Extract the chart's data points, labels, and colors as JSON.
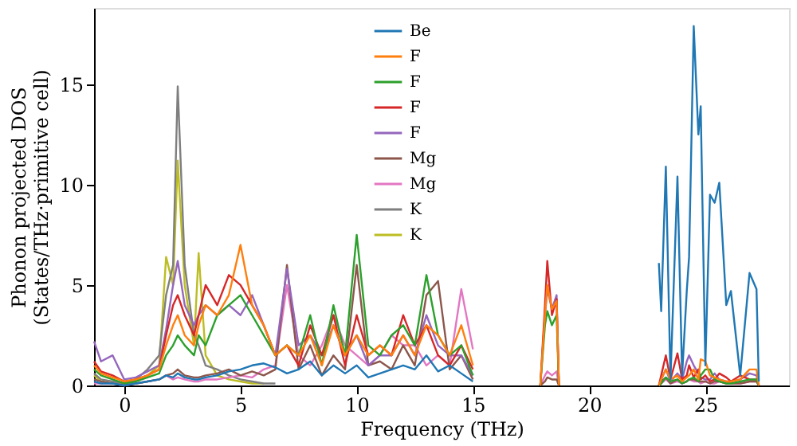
{
  "chart_data": {
    "type": "line",
    "xlabel": "Frequency (THz)",
    "ylabel": "Phonon projected DOS\n(States/THz·primitive cell)",
    "x": [
      -1.3,
      -1,
      -0.5,
      0,
      0.5,
      1,
      1.5,
      1.8,
      2.1,
      2.3,
      2.6,
      3,
      3.2,
      3.5,
      4,
      4.5,
      5,
      5.5,
      6,
      6.5,
      7,
      7.5,
      8,
      8.5,
      9,
      9.5,
      10,
      10.5,
      11,
      11.5,
      12,
      12.5,
      13,
      13.5,
      14,
      14.5,
      15,
      16,
      17.9,
      18.1,
      18.2,
      18.4,
      18.6,
      18.7,
      21,
      23,
      23.1,
      23.3,
      23.5,
      23.8,
      24,
      24.2,
      24.3,
      24.5,
      24.7,
      24.8,
      25,
      25.2,
      25.4,
      25.6,
      25.9,
      26.1,
      26.5,
      26.9,
      27.2,
      27.3
    ],
    "series": [
      {
        "name": "Be",
        "color": "#1f77b4",
        "values": [
          0.2,
          0.1,
          0.1,
          0,
          0.1,
          0.2,
          0.3,
          0.5,
          0.4,
          0.6,
          0.4,
          0.3,
          0.3,
          0.4,
          0.5,
          0.7,
          0.8,
          1.0,
          1.1,
          0.9,
          0.6,
          0.8,
          1.2,
          0.5,
          1.0,
          0.6,
          1.0,
          0.4,
          0.6,
          0.8,
          1.0,
          0.8,
          1.5,
          0.7,
          1.0,
          0.6,
          0.2,
          null,
          null,
          null,
          null,
          null,
          null,
          null,
          null,
          6.1,
          3.7,
          10.9,
          0.3,
          10.4,
          0.5,
          4.7,
          6.4,
          17.9,
          12.5,
          13.9,
          1,
          9.5,
          9.1,
          10.1,
          4,
          4.7,
          0.5,
          5.6,
          4.8,
          0.2
        ]
      },
      {
        "name": "F",
        "color": "#ff7f0e",
        "values": [
          1.0,
          0.6,
          0.4,
          0.2,
          0.3,
          0.5,
          0.8,
          2.0,
          3.0,
          3.5,
          2.5,
          2.0,
          3.0,
          4.0,
          3.5,
          4.5,
          7.0,
          4.0,
          3.0,
          1.5,
          2.0,
          1.5,
          2.5,
          1.0,
          3.0,
          1.5,
          2.5,
          1.5,
          2.0,
          1.5,
          2.5,
          1.5,
          3.0,
          2.5,
          1.5,
          3.0,
          1.0,
          null,
          0,
          3.5,
          5.0,
          3.8,
          4.2,
          0,
          null,
          0,
          0.3,
          0.8,
          0.3,
          0.5,
          0.2,
          0.4,
          0.5,
          0.8,
          0.3,
          1.3,
          1.2,
          0.5,
          0.4,
          0.3,
          0.2,
          0.2,
          0.3,
          0.8,
          0.8,
          0
        ]
      },
      {
        "name": "F",
        "color": "#2ca02c",
        "values": [
          0.8,
          0.5,
          0.3,
          0.1,
          0.2,
          0.4,
          0.6,
          1.5,
          2.0,
          2.5,
          2.0,
          1.5,
          2.5,
          2.0,
          3.5,
          4.0,
          4.5,
          3.5,
          2.5,
          1.5,
          2.0,
          1.5,
          3.5,
          1.0,
          4.0,
          1.5,
          7.5,
          2.0,
          1.5,
          2.5,
          3.0,
          2.0,
          5.5,
          2.5,
          1.5,
          2.0,
          0.5,
          null,
          0,
          3.0,
          3.7,
          3.0,
          3.5,
          0,
          null,
          0,
          0.1,
          0.4,
          0.2,
          0.3,
          0.1,
          0.2,
          0.3,
          0.4,
          0.2,
          0.5,
          0.8,
          0.8,
          0.3,
          0.2,
          0.1,
          0.1,
          0.2,
          0.3,
          0.3,
          0
        ]
      },
      {
        "name": "F",
        "color": "#d62728",
        "values": [
          1.2,
          0.7,
          0.5,
          0.2,
          0.3,
          0.5,
          0.8,
          2.5,
          4.0,
          4.5,
          3.5,
          2.5,
          3.5,
          5.0,
          4.0,
          5.5,
          5.0,
          4.0,
          3.0,
          1.5,
          2.0,
          1.0,
          3.0,
          1.5,
          3.5,
          1.0,
          3.5,
          1.5,
          2.0,
          1.5,
          3.5,
          2.0,
          3.0,
          1.5,
          1.0,
          2.0,
          0.8,
          null,
          0,
          4.0,
          6.2,
          3.5,
          4.3,
          0,
          null,
          0,
          0.5,
          1.5,
          0.3,
          1.6,
          0.3,
          0.5,
          1.0,
          0.4,
          0.8,
          0.3,
          0.5,
          0.2,
          0.3,
          0.6,
          0.4,
          0.2,
          0.5,
          0.3,
          0.3,
          0
        ]
      },
      {
        "name": "F",
        "color": "#9467bd",
        "values": [
          2.2,
          1.2,
          1.5,
          0.3,
          0.4,
          0.7,
          1.0,
          2.8,
          5.0,
          6.2,
          4.0,
          3.0,
          3.5,
          4.0,
          3.5,
          4.0,
          3.5,
          4.5,
          3.0,
          1.5,
          5.8,
          2.0,
          2.5,
          1.5,
          3.0,
          1.5,
          2.5,
          1.0,
          1.5,
          1.5,
          2.5,
          1.5,
          3.5,
          2.0,
          1.5,
          1.5,
          0.5,
          null,
          0,
          3.5,
          4.8,
          3.8,
          4.5,
          0,
          null,
          0,
          0.3,
          0.8,
          0.2,
          0.6,
          0.3,
          1.2,
          1.5,
          1.0,
          0.6,
          0.4,
          0.3,
          0.3,
          0.6,
          0.3,
          0.2,
          0.2,
          0.3,
          0.6,
          0.5,
          0
        ]
      },
      {
        "name": "Mg",
        "color": "#8c564b",
        "values": [
          0.3,
          0.2,
          0.1,
          0,
          0.1,
          0.2,
          0.3,
          0.5,
          0.6,
          0.8,
          0.5,
          0.4,
          0.4,
          0.5,
          0.6,
          0.8,
          0.5,
          0.7,
          0.5,
          0.8,
          6.0,
          0.8,
          2.0,
          0.5,
          1.5,
          0.8,
          6.0,
          1.0,
          1.2,
          0.8,
          2.0,
          1.0,
          4.5,
          5.2,
          0.8,
          1.5,
          0.3,
          null,
          0,
          0.2,
          0.4,
          0.3,
          0.3,
          0,
          null,
          0,
          0.2,
          0.4,
          0.1,
          0.3,
          0.1,
          0.2,
          0.3,
          0.3,
          0.2,
          0.2,
          0.2,
          0.1,
          0.2,
          0.2,
          0.1,
          0.1,
          0.1,
          0.2,
          0.2,
          0
        ]
      },
      {
        "name": "Mg",
        "color": "#e377c2",
        "values": [
          0.1,
          0.1,
          0.1,
          0,
          0.1,
          0.2,
          0.3,
          0.5,
          0.3,
          0.4,
          0.3,
          0.2,
          0.2,
          0.3,
          0.3,
          0.4,
          0.5,
          0.4,
          0.8,
          1.0,
          5.0,
          1.5,
          1.0,
          2.0,
          3.5,
          2.0,
          1.5,
          1.0,
          1.5,
          2.5,
          2.0,
          2.0,
          1.0,
          1.5,
          1.0,
          4.8,
          1.8,
          null,
          0,
          0.5,
          0.7,
          0.5,
          0.7,
          0,
          null,
          0,
          0.1,
          0.3,
          0.1,
          0.2,
          0.1,
          0.2,
          0.3,
          0.2,
          0.2,
          0.1,
          0.2,
          0.1,
          0.1,
          0.2,
          0.1,
          0.1,
          0.1,
          0.2,
          0.2,
          0
        ]
      },
      {
        "name": "K",
        "color": "#7f7f7f",
        "values": [
          0.6,
          0.3,
          0.2,
          0.1,
          0.3,
          0.8,
          1.5,
          4.5,
          6.0,
          14.9,
          6.0,
          2.5,
          2.0,
          1.0,
          0.8,
          0.5,
          0.3,
          0.2,
          0.1,
          0.1,
          null,
          null,
          null,
          null,
          null,
          null,
          null,
          null,
          null,
          null,
          null,
          null,
          null,
          null,
          null,
          null,
          null,
          null,
          null,
          null,
          null,
          null,
          null,
          null,
          null,
          null,
          null,
          null,
          null,
          null,
          null,
          null,
          null,
          null,
          null,
          null,
          null,
          null,
          null,
          null,
          null,
          null,
          null,
          null,
          null,
          null
        ]
      },
      {
        "name": "K",
        "color": "#bcbd22",
        "values": [
          0.5,
          0.2,
          0.1,
          0.1,
          0.2,
          0.5,
          1.0,
          6.4,
          5.0,
          11.2,
          5.0,
          2.0,
          6.6,
          1.5,
          0.5,
          0.3,
          0.2,
          0.1,
          0.1,
          null,
          null,
          null,
          null,
          null,
          null,
          null,
          null,
          null,
          null,
          null,
          null,
          null,
          null,
          null,
          null,
          null,
          null,
          null,
          null,
          null,
          null,
          null,
          null,
          null,
          null,
          null,
          null,
          null,
          null,
          null,
          null,
          null,
          null,
          null,
          null,
          null,
          null,
          null,
          null,
          null,
          null,
          null,
          null,
          null,
          null,
          null
        ]
      }
    ],
    "xlim": [
      -1.3,
      28.6
    ],
    "ylim": [
      0,
      18.8
    ],
    "xticks": [
      0,
      5,
      10,
      15,
      20,
      25
    ],
    "yticks": [
      0,
      5,
      10,
      15
    ],
    "grid": false,
    "legend": "top",
    "line_style": "solid",
    "marker": "none"
  }
}
